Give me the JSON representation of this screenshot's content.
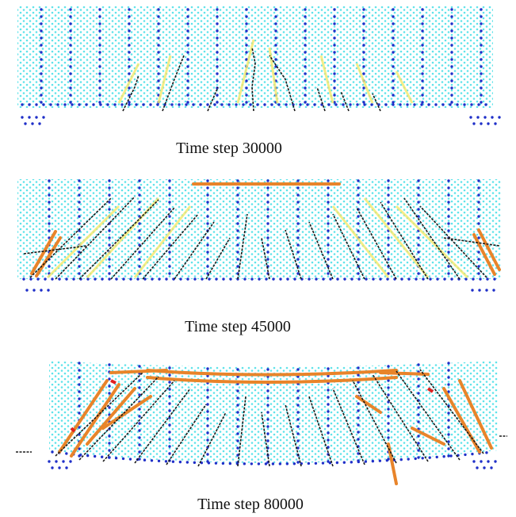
{
  "figure": {
    "panels": [
      {
        "caption": "Time step 30000"
      },
      {
        "caption": "Time step 45000"
      },
      {
        "caption": "Time step 80000"
      }
    ]
  }
}
